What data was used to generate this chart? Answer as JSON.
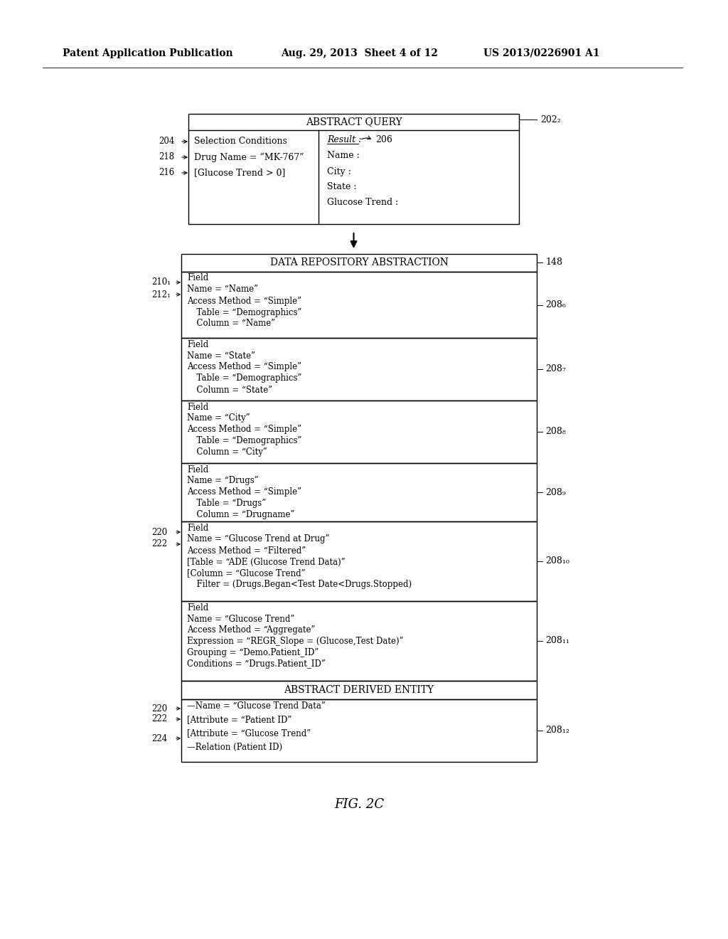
{
  "bg_color": "#ffffff",
  "header_text_left": "Patent Application Publication",
  "header_text_mid": "Aug. 29, 2013  Sheet 4 of 12",
  "header_text_right": "US 2013/0226901 A1",
  "fig_label": "FIG. 2C",
  "abstract_query": {
    "title": "ABSTRACT QUERY",
    "ref": "202₂",
    "left_lines": [
      "Selection Conditions",
      "Drug Name = “MK-767”",
      "[Glucose Trend > 0]"
    ],
    "left_refs": [
      "204",
      "218",
      "216"
    ],
    "right_title": "Result :",
    "right_ref": "206",
    "right_lines": [
      "Name :",
      "City :",
      "State :",
      "Glucose Trend :"
    ]
  },
  "dra": {
    "title": "DATA REPOSITORY ABSTRACTION",
    "ref": "148",
    "fields": [
      {
        "ref": "208₆",
        "left_refs": [
          "210₁",
          "212₁"
        ],
        "lines": [
          "Field",
          "Name = “Name”",
          "Access Method = “Simple”",
          "  Table = “Demographics”",
          "  Column = “Name”"
        ]
      },
      {
        "ref": "208₇",
        "left_refs": [],
        "lines": [
          "Field",
          "Name = “State”",
          "Access Method = “Simple”",
          "  Table = “Demographics”",
          "  Column = “State”"
        ]
      },
      {
        "ref": "208₈",
        "left_refs": [],
        "lines": [
          "Field",
          "Name = “City”",
          "Access Method = “Simple”",
          "  Table = “Demographics”",
          "  Column = “City”"
        ]
      },
      {
        "ref": "208₉",
        "left_refs": [],
        "lines": [
          "Field",
          "Name = “Drugs”",
          "Access Method = “Simple”",
          "  Table = “Drugs”",
          "  Column = “Drugname”"
        ]
      },
      {
        "ref": "208₁₀",
        "left_refs": [
          "220",
          "222"
        ],
        "lines": [
          "Field",
          "Name = “Glucose Trend at Drug”",
          "Access Method = “Filtered”",
          "⎡Table = “ADE (Glucose Trend Data)”",
          "⎡Column = “Glucose Trend”",
          "  Filter = (Drugs.Began<Test Date<Drugs.Stopped)"
        ]
      },
      {
        "ref": "208₁₁",
        "left_refs": [],
        "lines": [
          "Field",
          "Name = “Glucose Trend”",
          "Access Method = “Aggregate”",
          "Expression = “REGR_Slope = (Glucose,Test Date)”",
          "Grouping = “Demo.Patient_ID”",
          "Conditions = “Drugs.Patient_ID”"
        ]
      }
    ]
  },
  "ade": {
    "title": "ABSTRACT DERIVED ENTITY",
    "ref": "208₁₂",
    "left_refs": [
      "220",
      "222",
      "224"
    ],
    "lines": [
      "—Name = “Glucose Trend Data”",
      "⎡Attribute = “Patient ID”",
      "⎡Attribute = “Glucose Trend”",
      "—Relation (Patient ID)"
    ]
  }
}
